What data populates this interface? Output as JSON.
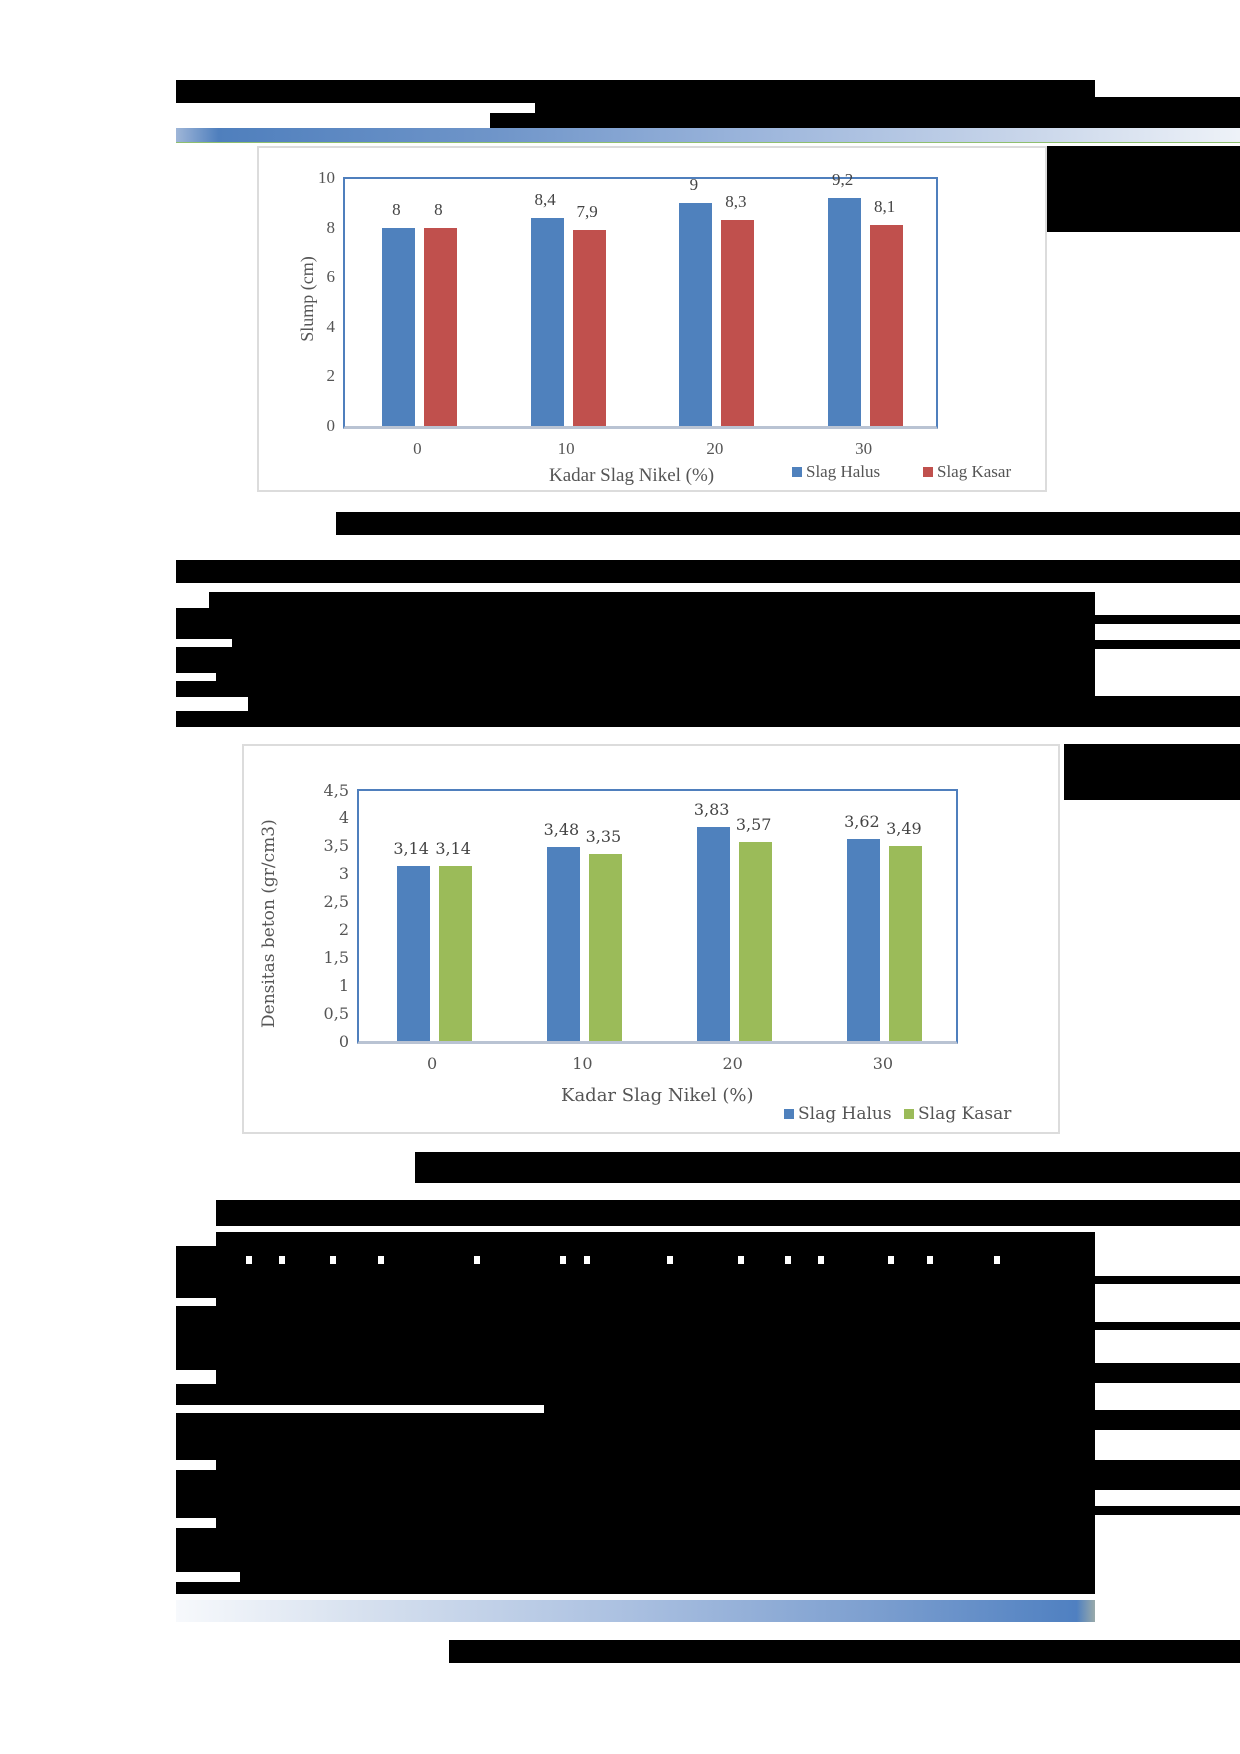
{
  "page": {
    "header_redacted": true,
    "body_text_redacted": true
  },
  "figures": [
    {
      "id": "slump",
      "legend": [
        {
          "label": "Slag Halus",
          "color": "#4f81bd"
        },
        {
          "label": "Slag Kasar",
          "color": "#c0504d"
        }
      ]
    },
    {
      "id": "density",
      "legend": [
        {
          "label": "Slag Halus",
          "color": "#4f81bd"
        },
        {
          "label": "Slag Kasar",
          "color": "#9bbb59"
        }
      ]
    }
  ],
  "chart_data": [
    {
      "type": "bar",
      "title": "",
      "xlabel": "Kadar Slag Nikel (%)",
      "ylabel": "Slump (cm)",
      "categories": [
        "0",
        "10",
        "20",
        "30"
      ],
      "series": [
        {
          "name": "Slag Halus",
          "color": "#4f81bd",
          "values": [
            8,
            8.4,
            9,
            9.2
          ],
          "labels": [
            "8",
            "8,4",
            "9",
            "9,2"
          ]
        },
        {
          "name": "Slag Kasar",
          "color": "#c0504d",
          "values": [
            8,
            7.9,
            8.3,
            8.1
          ],
          "labels": [
            "8",
            "7,9",
            "8,3",
            "8,1"
          ]
        }
      ],
      "ylim": [
        0,
        10
      ],
      "yticks": [
        "0",
        "2",
        "4",
        "6",
        "8",
        "10"
      ],
      "grid": false,
      "legend_position": "bottom-right"
    },
    {
      "type": "bar",
      "title": "",
      "xlabel": "Kadar Slag  Nikel (%)",
      "ylabel": "Densitas beton  (gr/cm3)",
      "categories": [
        "0",
        "10",
        "20",
        "30"
      ],
      "series": [
        {
          "name": "Slag Halus",
          "color": "#4f81bd",
          "values": [
            3.14,
            3.48,
            3.83,
            3.62
          ],
          "labels": [
            "3,14",
            "3,48",
            "3,83",
            "3,62"
          ]
        },
        {
          "name": "Slag Kasar",
          "color": "#9bbb59",
          "values": [
            3.14,
            3.35,
            3.57,
            3.49
          ],
          "labels": [
            "3,14",
            "3,35",
            "3,57",
            "3,49"
          ]
        }
      ],
      "ylim": [
        0,
        4.5
      ],
      "yticks": [
        "0",
        "0,5",
        "1",
        "1,5",
        "2",
        "2,5",
        "3",
        "3,5",
        "4",
        "4,5"
      ],
      "grid": false,
      "legend_position": "bottom-right"
    }
  ]
}
